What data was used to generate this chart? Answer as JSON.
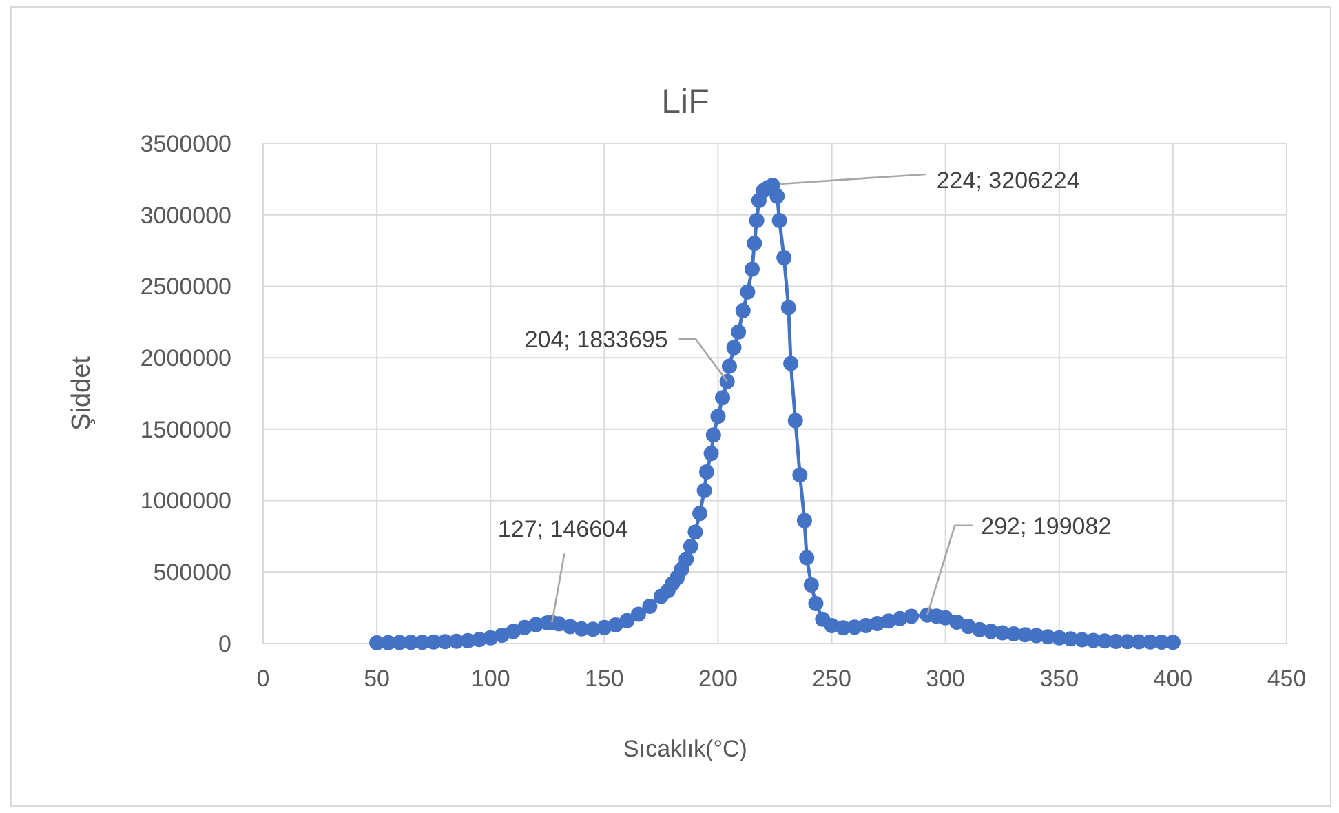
{
  "chart_data": {
    "type": "line",
    "title": "LiF",
    "xlabel": "Sıcaklık(°C)",
    "ylabel": "Şiddet",
    "xlim": [
      0,
      450
    ],
    "xticks": [
      0,
      50,
      100,
      150,
      200,
      250,
      300,
      350,
      400,
      450
    ],
    "ylim": [
      0,
      3500000
    ],
    "yticks": [
      0,
      500000,
      1000000,
      1500000,
      2000000,
      2500000,
      3000000,
      3500000
    ],
    "grid": true,
    "marker": "circle",
    "line_style": "solid",
    "series": [
      {
        "color": "#4472c4",
        "x": [
          50,
          55,
          60,
          65,
          70,
          75,
          80,
          85,
          90,
          95,
          100,
          105,
          110,
          115,
          120,
          125,
          127,
          130,
          135,
          140,
          145,
          150,
          155,
          160,
          165,
          170,
          175,
          178,
          180,
          182,
          184,
          186,
          188,
          190,
          192,
          194,
          195,
          197,
          198,
          200,
          202,
          204,
          205,
          207,
          209,
          211,
          213,
          215,
          216,
          217,
          218,
          220,
          222,
          224,
          226,
          227,
          229,
          231,
          232,
          234,
          236,
          238,
          239,
          241,
          243,
          246,
          250,
          255,
          260,
          265,
          270,
          275,
          280,
          285,
          292,
          296,
          300,
          305,
          310,
          315,
          320,
          325,
          330,
          335,
          340,
          345,
          350,
          355,
          360,
          365,
          370,
          375,
          380,
          385,
          390,
          395,
          400
        ],
        "values": [
          5000,
          6000,
          7000,
          8000,
          9000,
          11000,
          13000,
          16000,
          20000,
          28000,
          40000,
          58000,
          85000,
          112000,
          132000,
          145000,
          146604,
          138000,
          118000,
          102000,
          100000,
          112000,
          130000,
          160000,
          205000,
          260000,
          330000,
          370000,
          420000,
          460000,
          520000,
          590000,
          680000,
          780000,
          910000,
          1070000,
          1200000,
          1330000,
          1460000,
          1590000,
          1720000,
          1833695,
          1940000,
          2070000,
          2180000,
          2330000,
          2460000,
          2620000,
          2800000,
          2960000,
          3100000,
          3170000,
          3190000,
          3206224,
          3130000,
          2960000,
          2700000,
          2350000,
          1960000,
          1560000,
          1180000,
          860000,
          600000,
          410000,
          280000,
          170000,
          125000,
          110000,
          115000,
          125000,
          140000,
          158000,
          175000,
          190000,
          199082,
          192000,
          180000,
          150000,
          120000,
          98000,
          85000,
          75000,
          68000,
          62000,
          55000,
          47000,
          40000,
          33000,
          27000,
          22000,
          18000,
          15000,
          13000,
          12000,
          11000,
          10000,
          9000
        ]
      }
    ],
    "annotations": [
      {
        "text": "224; 3206224",
        "x": 224,
        "y": 3206224
      },
      {
        "text": "204; 1833695",
        "x": 204,
        "y": 1833695
      },
      {
        "text": "127; 146604",
        "x": 127,
        "y": 146604
      },
      {
        "text": "292; 199082",
        "x": 292,
        "y": 199082
      }
    ]
  }
}
